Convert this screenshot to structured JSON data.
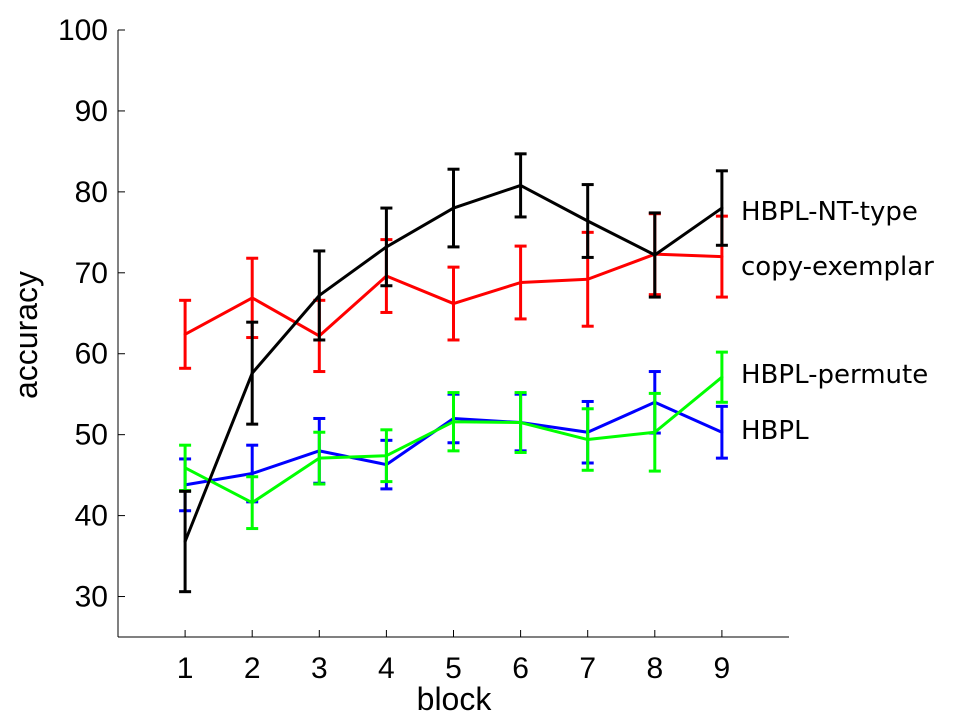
{
  "chart_data": {
    "type": "line",
    "xlabel": "block",
    "ylabel": "accuracy",
    "x": [
      1,
      2,
      3,
      4,
      5,
      6,
      7,
      8,
      9
    ],
    "xlim": [
      0,
      10
    ],
    "ylim": [
      25,
      100
    ],
    "yticks": [
      30,
      40,
      50,
      60,
      70,
      80,
      90,
      100
    ],
    "xticks": [
      1,
      2,
      3,
      4,
      5,
      6,
      7,
      8,
      9
    ],
    "grid": false,
    "legend": "labels at right end of each series",
    "series": [
      {
        "name": "HBPL-NT-type",
        "color": "#000000",
        "values": [
          36.8,
          57.6,
          67.2,
          73.2,
          78.0,
          80.8,
          76.4,
          72.2,
          78.0
        ],
        "err": [
          6.2,
          6.3,
          5.5,
          4.8,
          4.8,
          3.9,
          4.5,
          5.2,
          4.6
        ]
      },
      {
        "name": "copy-exemplar",
        "color": "#ff0000",
        "values": [
          62.4,
          66.9,
          62.2,
          69.6,
          66.2,
          68.8,
          69.2,
          72.3,
          72.0
        ],
        "err": [
          4.2,
          4.9,
          4.4,
          4.5,
          4.5,
          4.5,
          5.8,
          5.0,
          5.0
        ]
      },
      {
        "name": "HBPL-permute",
        "color": "#00ff00",
        "values": [
          45.9,
          41.6,
          47.1,
          47.4,
          51.6,
          51.5,
          49.4,
          50.3,
          57.1
        ],
        "err": [
          2.8,
          3.2,
          3.2,
          3.2,
          3.6,
          3.7,
          3.8,
          4.8,
          3.1
        ]
      },
      {
        "name": "HBPL",
        "color": "#0000ff",
        "values": [
          43.8,
          45.2,
          48.0,
          46.3,
          52.0,
          51.5,
          50.3,
          54.0,
          50.3
        ],
        "err": [
          3.2,
          3.5,
          4.0,
          3.0,
          3.0,
          3.5,
          3.8,
          3.8,
          3.2
        ]
      }
    ]
  }
}
